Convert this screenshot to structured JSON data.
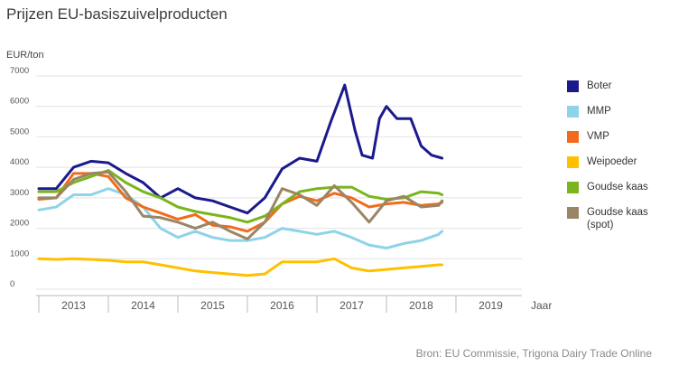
{
  "title": "Prijzen EU-basiszuivelproducten",
  "unit": "EUR/ton",
  "source": "Bron: EU Commissie, Trigona Dairy Trade Online",
  "legend": [
    {
      "label": "Boter",
      "color": "#1a1a8c"
    },
    {
      "label": "MMP",
      "color": "#8fd3e8"
    },
    {
      "label": "VMP",
      "color": "#f26b1d"
    },
    {
      "label": "Weipoeder",
      "color": "#ffc000"
    },
    {
      "label": "Goudse kaas",
      "color": "#7ab51d"
    },
    {
      "label": "Goudse kaas\n(spot)",
      "color": "#9a8565"
    }
  ],
  "chart_data": {
    "type": "line",
    "title": "Prijzen EU-basiszuivelproducten",
    "ylabel": "EUR/ton",
    "xlabel": "Jaar",
    "x_axis_title": "Jaar",
    "x_ticks": [
      "2013",
      "2014",
      "2015",
      "2016",
      "2017",
      "2018",
      "2019"
    ],
    "y_ticks": [
      0,
      1000,
      2000,
      3000,
      4000,
      5000,
      6000,
      7000
    ],
    "ylim": [
      0,
      7000
    ],
    "xlim": [
      2013,
      2019.8
    ],
    "grid": true,
    "legend_position": "right",
    "series": [
      {
        "name": "Boter",
        "color": "#1a1a8c",
        "x": [
          2013.0,
          2013.25,
          2013.5,
          2013.75,
          2014.0,
          2014.25,
          2014.5,
          2014.75,
          2015.0,
          2015.25,
          2015.5,
          2015.75,
          2016.0,
          2016.25,
          2016.5,
          2016.75,
          2017.0,
          2017.2,
          2017.4,
          2017.55,
          2017.65,
          2017.8,
          2017.9,
          2018.0,
          2018.15,
          2018.35,
          2018.5,
          2018.65,
          2018.8
        ],
        "y": [
          3300,
          3300,
          4000,
          4200,
          4150,
          3800,
          3500,
          3000,
          3300,
          3000,
          2900,
          2700,
          2500,
          3000,
          3950,
          4300,
          4200,
          5500,
          6700,
          5200,
          4400,
          4300,
          5600,
          6000,
          5600,
          5600,
          4700,
          4400,
          4300
        ]
      },
      {
        "name": "MMP",
        "color": "#8fd3e8",
        "x": [
          2013.0,
          2013.25,
          2013.5,
          2013.75,
          2014.0,
          2014.25,
          2014.5,
          2014.75,
          2015.0,
          2015.25,
          2015.5,
          2015.75,
          2016.0,
          2016.25,
          2016.5,
          2016.75,
          2017.0,
          2017.25,
          2017.5,
          2017.75,
          2018.0,
          2018.25,
          2018.5,
          2018.75,
          2018.8
        ],
        "y": [
          2600,
          2700,
          3100,
          3100,
          3300,
          3100,
          2700,
          2000,
          1700,
          1900,
          1700,
          1600,
          1600,
          1700,
          2000,
          1900,
          1800,
          1900,
          1700,
          1450,
          1350,
          1500,
          1600,
          1800,
          1900
        ]
      },
      {
        "name": "VMP",
        "color": "#f26b1d",
        "x": [
          2013.0,
          2013.25,
          2013.5,
          2013.75,
          2014.0,
          2014.25,
          2014.5,
          2014.75,
          2015.0,
          2015.25,
          2015.5,
          2015.75,
          2016.0,
          2016.25,
          2016.5,
          2016.75,
          2017.0,
          2017.25,
          2017.5,
          2017.75,
          2018.0,
          2018.25,
          2018.5,
          2018.75,
          2018.8
        ],
        "y": [
          2950,
          3000,
          3800,
          3800,
          3700,
          3000,
          2700,
          2500,
          2300,
          2450,
          2100,
          2050,
          1900,
          2200,
          2800,
          3050,
          2900,
          3150,
          3000,
          2700,
          2800,
          2850,
          2750,
          2800,
          2850
        ]
      },
      {
        "name": "Weipoeder",
        "color": "#ffc000",
        "x": [
          2013.0,
          2013.25,
          2013.5,
          2013.75,
          2014.0,
          2014.25,
          2014.5,
          2014.75,
          2015.0,
          2015.25,
          2015.5,
          2015.75,
          2016.0,
          2016.25,
          2016.5,
          2016.75,
          2017.0,
          2017.25,
          2017.5,
          2017.75,
          2018.0,
          2018.25,
          2018.5,
          2018.75,
          2018.8
        ],
        "y": [
          1000,
          980,
          1000,
          980,
          950,
          900,
          900,
          800,
          700,
          600,
          550,
          500,
          450,
          500,
          900,
          900,
          900,
          1000,
          700,
          600,
          650,
          700,
          750,
          800,
          800
        ]
      },
      {
        "name": "Goudse kaas",
        "color": "#7ab51d",
        "x": [
          2013.0,
          2013.25,
          2013.5,
          2013.75,
          2014.0,
          2014.25,
          2014.5,
          2014.75,
          2015.0,
          2015.25,
          2015.5,
          2015.75,
          2016.0,
          2016.25,
          2016.5,
          2016.75,
          2017.0,
          2017.25,
          2017.5,
          2017.75,
          2018.0,
          2018.25,
          2018.5,
          2018.75,
          2018.8
        ],
        "y": [
          3200,
          3200,
          3500,
          3700,
          3900,
          3500,
          3200,
          3000,
          2700,
          2550,
          2450,
          2350,
          2200,
          2400,
          2800,
          3200,
          3300,
          3350,
          3350,
          3050,
          2950,
          3000,
          3200,
          3150,
          3100
        ]
      },
      {
        "name": "Goudse kaas\n(spot)",
        "color": "#9a8565",
        "x": [
          2013.0,
          2013.25,
          2013.5,
          2013.75,
          2014.0,
          2014.25,
          2014.5,
          2014.75,
          2015.0,
          2015.25,
          2015.5,
          2015.75,
          2016.0,
          2016.25,
          2016.5,
          2016.75,
          2017.0,
          2017.25,
          2017.5,
          2017.75,
          2018.0,
          2018.25,
          2018.5,
          2018.75,
          2018.8
        ],
        "y": [
          3000,
          3000,
          3600,
          3800,
          3850,
          3200,
          2400,
          2350,
          2200,
          2000,
          2200,
          1900,
          1650,
          2200,
          3300,
          3100,
          2750,
          3400,
          2850,
          2200,
          2900,
          3050,
          2700,
          2750,
          2900
        ]
      }
    ]
  }
}
